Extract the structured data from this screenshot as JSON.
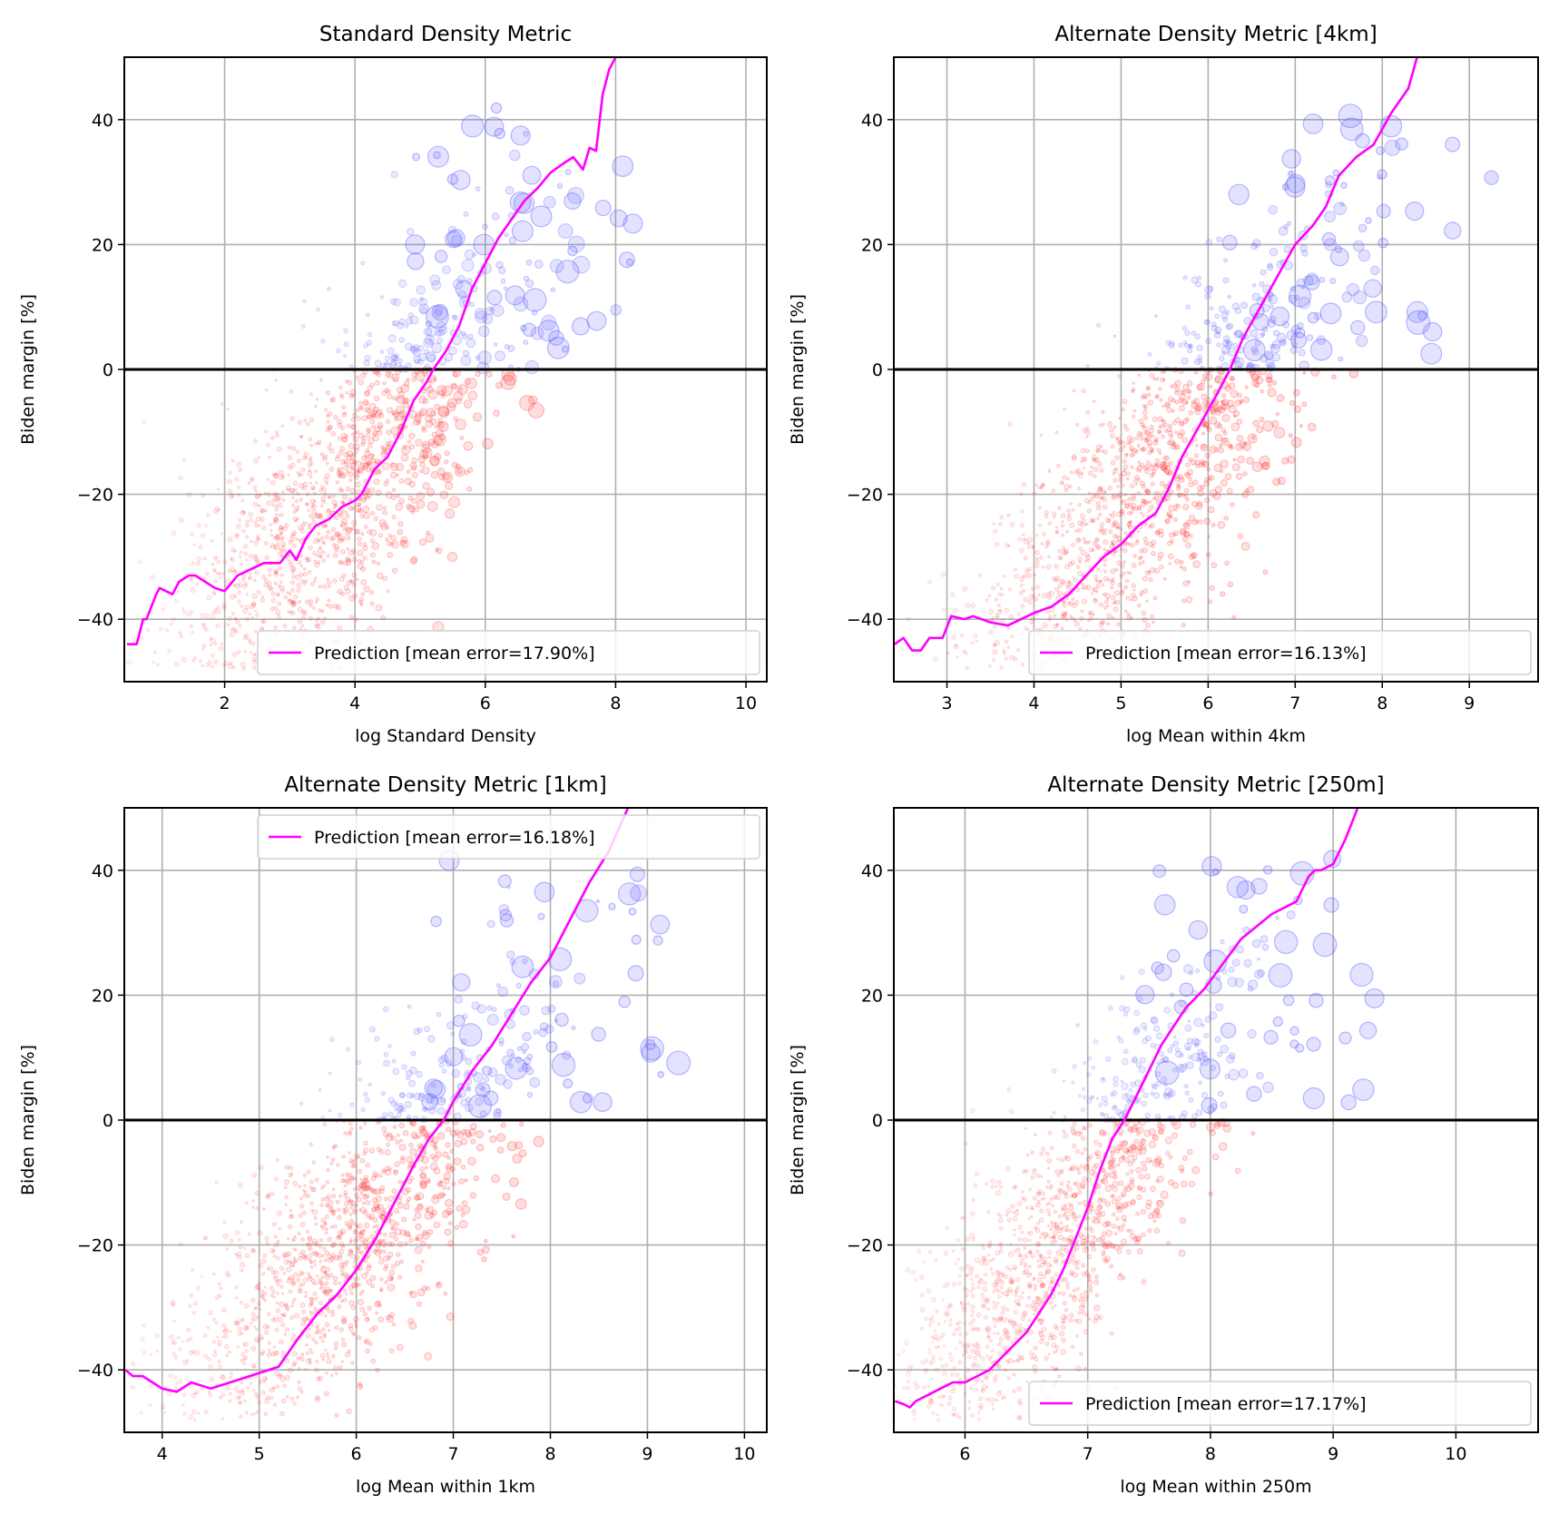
{
  "chart_data": [
    {
      "type": "scatter",
      "title": "Standard Density Metric",
      "xlabel": "log Standard Density",
      "ylabel": "Biden margin [%]",
      "xlim": [
        0.46,
        10.32
      ],
      "ylim": [
        -50,
        50
      ],
      "xticks": [
        2,
        4,
        6,
        8,
        10
      ],
      "yticks": [
        -40,
        -20,
        0,
        20,
        40
      ],
      "grid": true,
      "legend": {
        "label": "Prediction [mean error=17.90%]",
        "placement": "lower-right"
      },
      "scatter_cloud": {
        "x_center": 3.6,
        "x_spread": 1.3,
        "slope": 8.5,
        "noise": 11,
        "count": 1400
      },
      "series": [
        {
          "name": "Prediction [mean error=17.90%]",
          "x": [
            0.5,
            0.65,
            0.75,
            0.8,
            0.95,
            1.0,
            1.2,
            1.3,
            1.45,
            1.55,
            1.7,
            1.85,
            2.0,
            2.2,
            2.4,
            2.6,
            2.85,
            3.0,
            3.1,
            3.25,
            3.4,
            3.6,
            3.8,
            4.0,
            4.1,
            4.3,
            4.5,
            4.7,
            4.9,
            5.1,
            5.2,
            5.4,
            5.6,
            5.8,
            6.0,
            6.2,
            6.4,
            6.6,
            6.8,
            7.0,
            7.2,
            7.35,
            7.5,
            7.6,
            7.7,
            7.8,
            7.9,
            8.0
          ],
          "y": [
            -44,
            -44,
            -40,
            -40,
            -36,
            -35,
            -36,
            -34,
            -33,
            -33,
            -34,
            -35,
            -35.5,
            -33,
            -32,
            -31,
            -31,
            -29,
            -30.5,
            -27,
            -25,
            -24,
            -22,
            -21,
            -20,
            -16,
            -14,
            -10,
            -5,
            -2,
            0,
            3,
            7,
            13,
            17,
            21,
            24,
            27,
            29,
            31.5,
            33,
            34,
            32,
            35.5,
            35,
            44,
            48,
            50
          ]
        }
      ]
    },
    {
      "type": "scatter",
      "title": "Alternate Density Metric [4km]",
      "xlabel": "log Mean within 4km",
      "ylabel": "Biden margin [%]",
      "xlim": [
        2.39,
        9.79
      ],
      "ylim": [
        -50,
        50
      ],
      "xticks": [
        3,
        4,
        5,
        6,
        7,
        8,
        9
      ],
      "yticks": [
        -40,
        -20,
        0,
        20,
        40
      ],
      "grid": true,
      "legend": {
        "label": "Prediction [mean error=16.13%]",
        "placement": "lower-right"
      },
      "scatter_cloud": {
        "x_center": 5.2,
        "x_spread": 1.0,
        "slope": 12,
        "noise": 11,
        "count": 1400
      },
      "series": [
        {
          "name": "Prediction [mean error=16.13%]",
          "x": [
            2.4,
            2.5,
            2.6,
            2.7,
            2.8,
            2.95,
            3.05,
            3.2,
            3.3,
            3.5,
            3.7,
            3.85,
            4.0,
            4.2,
            4.4,
            4.6,
            4.8,
            5.0,
            5.2,
            5.4,
            5.55,
            5.7,
            5.9,
            6.1,
            6.25,
            6.4,
            6.6,
            6.8,
            7.0,
            7.2,
            7.35,
            7.5,
            7.7,
            7.9,
            8.1,
            8.3,
            8.4
          ],
          "y": [
            -44,
            -43,
            -45,
            -45,
            -43,
            -43,
            -39.5,
            -40,
            -39.5,
            -40.5,
            -41,
            -40,
            -39,
            -38,
            -36,
            -33,
            -30,
            -28,
            -25,
            -23,
            -19,
            -14,
            -9,
            -4,
            0,
            5,
            10,
            15,
            20,
            23,
            26,
            31,
            34,
            36,
            41,
            45,
            50
          ]
        }
      ]
    },
    {
      "type": "scatter",
      "title": "Alternate Density Metric [1km]",
      "xlabel": "log Mean within 1km",
      "ylabel": "Biden margin [%]",
      "xlim": [
        3.61,
        10.23
      ],
      "ylim": [
        -50,
        50
      ],
      "xticks": [
        4,
        5,
        6,
        7,
        8,
        9,
        10
      ],
      "yticks": [
        -40,
        -20,
        0,
        20,
        40
      ],
      "grid": true,
      "legend": {
        "label": "Prediction [mean error=16.18%]",
        "placement": "upper-right"
      },
      "scatter_cloud": {
        "x_center": 5.8,
        "x_spread": 0.95,
        "slope": 13,
        "noise": 11,
        "count": 1400
      },
      "series": [
        {
          "name": "Prediction [mean error=16.18%]",
          "x": [
            3.62,
            3.7,
            3.8,
            3.9,
            4.0,
            4.15,
            4.3,
            4.5,
            4.7,
            4.9,
            5.0,
            5.2,
            5.4,
            5.6,
            5.8,
            6.0,
            6.2,
            6.4,
            6.6,
            6.75,
            6.9,
            7.0,
            7.2,
            7.4,
            7.6,
            7.8,
            8.0,
            8.2,
            8.4,
            8.6,
            8.8
          ],
          "y": [
            -40,
            -41,
            -41,
            -42,
            -43,
            -43.5,
            -42,
            -43,
            -42,
            -41,
            -40.5,
            -39.5,
            -35,
            -31,
            -28,
            -24,
            -19,
            -13,
            -7,
            -3,
            0,
            3,
            8,
            12,
            17,
            22,
            26,
            32,
            38,
            43,
            50
          ]
        }
      ]
    },
    {
      "type": "scatter",
      "title": "Alternate Density Metric [250m]",
      "xlabel": "log Mean within 250m",
      "ylabel": "Biden margin [%]",
      "xlim": [
        5.42,
        10.67
      ],
      "ylim": [
        -50,
        50
      ],
      "xticks": [
        6,
        7,
        8,
        9,
        10
      ],
      "yticks": [
        -40,
        -20,
        0,
        20,
        40
      ],
      "grid": true,
      "legend": {
        "label": "Prediction [mean error=17.17%]",
        "placement": "lower-right"
      },
      "scatter_cloud": {
        "x_center": 6.7,
        "x_spread": 0.7,
        "slope": 18,
        "noise": 11,
        "count": 1400
      },
      "series": [
        {
          "name": "Prediction [mean error=17.17%]",
          "x": [
            5.43,
            5.5,
            5.55,
            5.6,
            5.7,
            5.8,
            5.9,
            6.0,
            6.1,
            6.2,
            6.3,
            6.4,
            6.5,
            6.6,
            6.7,
            6.8,
            6.9,
            7.0,
            7.1,
            7.2,
            7.3,
            7.4,
            7.5,
            7.6,
            7.7,
            7.8,
            7.95,
            8.1,
            8.25,
            8.5,
            8.7,
            8.8,
            8.85,
            8.9,
            9.0,
            9.1,
            9.2
          ],
          "y": [
            -45,
            -45.5,
            -46,
            -45,
            -44,
            -43,
            -42,
            -42,
            -41,
            -40,
            -38,
            -36,
            -34,
            -31,
            -28,
            -24,
            -19,
            -14,
            -8,
            -3,
            0,
            4,
            8,
            12,
            15,
            18,
            21,
            25,
            29,
            33,
            35,
            39,
            40,
            40,
            41,
            45,
            50
          ]
        }
      ]
    }
  ],
  "colors": {
    "prediction": "#ff00ff",
    "dem": "#6666ff",
    "rep": "#ff3333",
    "zero_line": "#000000",
    "grid": "#b0b0b0"
  }
}
